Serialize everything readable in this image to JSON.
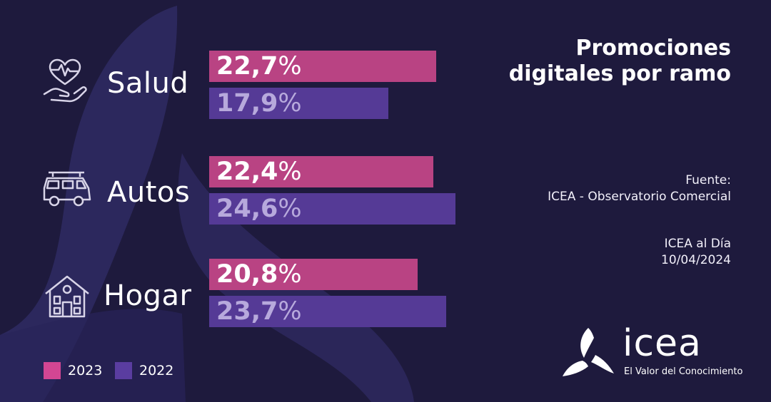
{
  "header": {
    "title_line1": "Promociones",
    "title_line2": "digitales por ramo"
  },
  "source": {
    "label": "Fuente:",
    "text": "ICEA - Observatorio Comercial"
  },
  "publication": {
    "name": "ICEA al Día",
    "date": "10/04/2024"
  },
  "brand": {
    "name": "icea",
    "tagline": "El Valor del Conocimiento"
  },
  "colors": {
    "background": "#1e1a3d",
    "bar_2023": "#b94383",
    "bar_2022": "#553a96",
    "label_2022": "#b7a9dc",
    "swatch_2023": "#d34693",
    "swatch_2022": "#5a3da0"
  },
  "chart_data": {
    "type": "bar",
    "orientation": "horizontal",
    "categories": [
      "Salud",
      "Autos",
      "Hogar"
    ],
    "category_icons": [
      "heart-in-hand-icon",
      "car-icon",
      "house-icon"
    ],
    "series": [
      {
        "name": "2023",
        "values": [
          22.7,
          22.4,
          20.8
        ],
        "labels": [
          "22,7",
          "22,4",
          "20,8"
        ]
      },
      {
        "name": "2022",
        "values": [
          17.9,
          24.6,
          23.7
        ],
        "labels": [
          "17,9",
          "24,6",
          "23,7"
        ]
      }
    ],
    "unit": "%",
    "xlim": [
      0,
      24.6
    ],
    "legend": {
      "position": "bottom-left",
      "entries": [
        "2023",
        "2022"
      ]
    }
  }
}
